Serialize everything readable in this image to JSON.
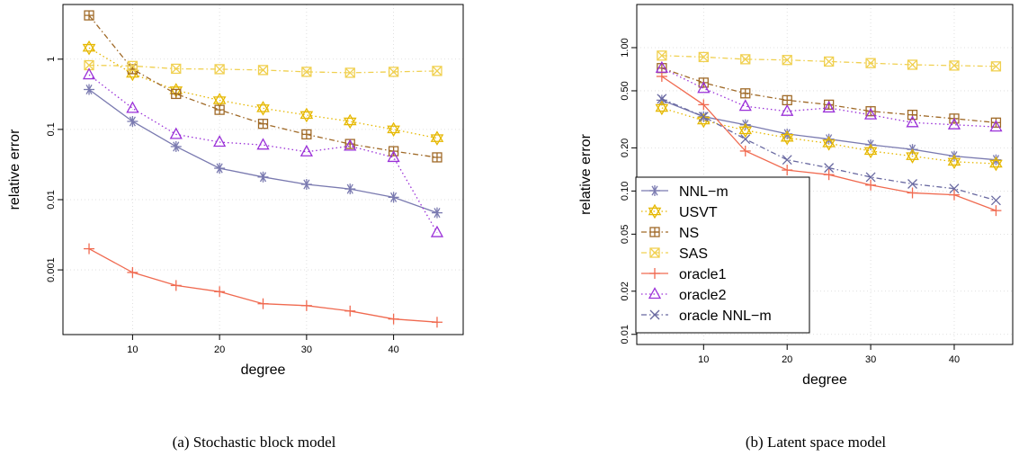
{
  "chart_data": [
    {
      "type": "line",
      "caption": "(a) Stochastic block model",
      "xlabel": "degree",
      "ylabel": "relative error",
      "y_scale": "log",
      "xlim": [
        2,
        48
      ],
      "ylim": [
        0.00012,
        6
      ],
      "x_ticks": [
        10,
        20,
        30,
        40
      ],
      "y_ticks": [
        0.001,
        0.01,
        0.1,
        1
      ],
      "y_tick_labels": [
        "0.001",
        "0.01",
        "0.1",
        "1"
      ],
      "grid": true,
      "legend": false,
      "x": [
        5,
        10,
        15,
        20,
        25,
        30,
        35,
        40,
        45
      ],
      "series": [
        {
          "name": "NNL−m",
          "color": "#7a7ab0",
          "line_style": "solid",
          "marker": "asterisk",
          "values": [
            0.37,
            0.13,
            0.057,
            0.028,
            0.021,
            0.0165,
            0.0142,
            0.0108,
            0.0065
          ]
        },
        {
          "name": "USVT",
          "color": "#e6b800",
          "line_style": "dotted",
          "marker": "star-of-david",
          "values": [
            1.45,
            0.62,
            0.36,
            0.26,
            0.2,
            0.16,
            0.13,
            0.1,
            0.075
          ]
        },
        {
          "name": "NS",
          "color": "#a06a28",
          "line_style": "dashdot",
          "marker": "boxed-plus",
          "values": [
            4.2,
            0.72,
            0.32,
            0.19,
            0.12,
            0.085,
            0.062,
            0.049,
            0.04
          ]
        },
        {
          "name": "SAS",
          "color": "#f0d050",
          "line_style": "dashdot",
          "marker": "boxed-x",
          "values": [
            0.82,
            0.8,
            0.73,
            0.72,
            0.7,
            0.66,
            0.64,
            0.66,
            0.68
          ]
        },
        {
          "name": "oracle1",
          "color": "#f06a50",
          "line_style": "solid",
          "marker": "plus",
          "values": [
            0.002,
            0.00092,
            0.0006,
            0.00049,
            0.00033,
            0.00031,
            0.00026,
            0.0002,
            0.00018
          ]
        },
        {
          "name": "oracle2",
          "color": "#9a30d8",
          "line_style": "dotted",
          "marker": "triangle",
          "values": [
            0.6,
            0.2,
            0.085,
            0.066,
            0.06,
            0.048,
            0.058,
            0.04,
            0.0034
          ]
        }
      ]
    },
    {
      "type": "line",
      "caption": "(b) Latent space model",
      "xlabel": "degree",
      "ylabel": "relative error",
      "y_scale": "log",
      "xlim": [
        2,
        47
      ],
      "ylim": [
        0.0085,
        2
      ],
      "x_ticks": [
        10,
        20,
        30,
        40
      ],
      "y_ticks": [
        0.01,
        0.02,
        0.05,
        0.1,
        0.2,
        0.5,
        1
      ],
      "y_tick_labels": [
        "0.01",
        "0.02",
        "0.05",
        "0.10",
        "0.20",
        "0.50",
        "1.00"
      ],
      "grid": true,
      "legend": true,
      "legend_position": "bottom-left",
      "x": [
        5,
        10,
        15,
        20,
        25,
        30,
        35,
        40,
        45
      ],
      "series": [
        {
          "name": "NNL−m",
          "color": "#7a7ab0",
          "line_style": "solid",
          "marker": "asterisk",
          "values": [
            0.43,
            0.33,
            0.29,
            0.25,
            0.23,
            0.21,
            0.195,
            0.175,
            0.165
          ]
        },
        {
          "name": "USVT",
          "color": "#e6b800",
          "line_style": "dotted",
          "marker": "star-of-david",
          "values": [
            0.38,
            0.31,
            0.265,
            0.235,
            0.215,
            0.19,
            0.175,
            0.16,
            0.155
          ]
        },
        {
          "name": "NS",
          "color": "#a06a28",
          "line_style": "dashdot",
          "marker": "boxed-plus",
          "values": [
            0.72,
            0.57,
            0.48,
            0.43,
            0.4,
            0.36,
            0.34,
            0.32,
            0.3
          ]
        },
        {
          "name": "SAS",
          "color": "#f0d050",
          "line_style": "dashdot",
          "marker": "boxed-x",
          "values": [
            0.88,
            0.86,
            0.83,
            0.82,
            0.8,
            0.78,
            0.76,
            0.75,
            0.74
          ]
        },
        {
          "name": "oracle1",
          "color": "#f06a50",
          "line_style": "solid",
          "marker": "plus",
          "values": [
            0.63,
            0.4,
            0.19,
            0.14,
            0.13,
            0.11,
            0.097,
            0.094,
            0.073
          ]
        },
        {
          "name": "oracle2",
          "color": "#9a30d8",
          "line_style": "dotted",
          "marker": "triangle",
          "values": [
            0.72,
            0.52,
            0.39,
            0.36,
            0.38,
            0.34,
            0.3,
            0.29,
            0.28
          ]
        },
        {
          "name": "oracle NNL−m",
          "color": "#6868a0",
          "line_style": "dashdot",
          "marker": "x",
          "values": [
            0.44,
            0.33,
            0.23,
            0.165,
            0.145,
            0.125,
            0.112,
            0.104,
            0.086
          ]
        }
      ]
    }
  ]
}
